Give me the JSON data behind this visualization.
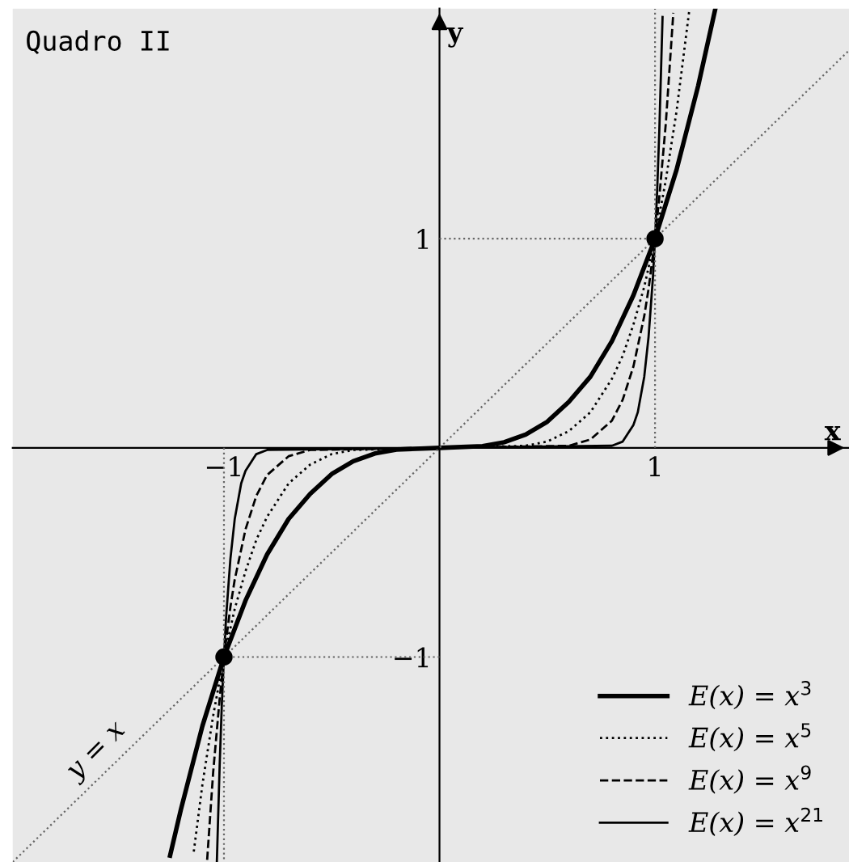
{
  "chart_data": {
    "type": "line",
    "title": "Quadro II",
    "xlabel": "x",
    "ylabel": "y",
    "xlim": [
      -1.98,
      1.9
    ],
    "ylim": [
      -1.98,
      2.1
    ],
    "xticks": [
      {
        "value": -1,
        "label": "−1"
      },
      {
        "value": 1,
        "label": "1"
      }
    ],
    "yticks": [
      {
        "value": -1,
        "label": "−1"
      },
      {
        "value": 1,
        "label": "1"
      }
    ],
    "grid": false,
    "legend": "bottom right",
    "annotations": [
      "y = x"
    ],
    "series": [
      {
        "name": "E(x) = x$^{3}$",
        "color": "#000000",
        "line_style": "solid",
        "x": [
          -1.25,
          -1.2,
          -1.1,
          -1,
          -0.9,
          -0.8,
          -0.7,
          -0.6,
          -0.5,
          -0.4,
          -0.3,
          -0.2,
          0,
          0.2,
          0.3,
          0.4,
          0.5,
          0.6,
          0.7,
          0.8,
          0.9,
          1,
          1.1,
          1.2,
          1.28
        ],
        "values": [
          -1.95,
          -1.73,
          -1.33,
          -1,
          -0.73,
          -0.51,
          -0.34,
          -0.22,
          -0.125,
          -0.064,
          -0.027,
          -0.008,
          0,
          0.008,
          0.027,
          0.064,
          0.125,
          0.22,
          0.34,
          0.51,
          0.73,
          1,
          1.33,
          1.73,
          2.1
        ]
      },
      {
        "name": "E(x) = x$^{5}$",
        "color": "#000000",
        "line_style": "dotted",
        "x": [
          -1.14,
          -1.1,
          -1.05,
          -1,
          -0.95,
          -0.9,
          -0.85,
          -0.8,
          -0.7,
          -0.6,
          -0.5,
          -0.4,
          0,
          0.4,
          0.5,
          0.6,
          0.7,
          0.8,
          0.85,
          0.9,
          0.95,
          1,
          1.05,
          1.1,
          1.16
        ],
        "values": [
          -1.93,
          -1.61,
          -1.28,
          -1,
          -0.77,
          -0.59,
          -0.44,
          -0.33,
          -0.17,
          -0.08,
          -0.03,
          -0.01,
          0,
          0.01,
          0.03,
          0.08,
          0.17,
          0.33,
          0.44,
          0.59,
          0.77,
          1,
          1.28,
          1.61,
          2.1
        ]
      },
      {
        "name": "E(x) = x$^{9}$",
        "color": "#000000",
        "line_style": "dashed",
        "x": [
          -1.078,
          -1.05,
          -1.02,
          -1,
          -0.97,
          -0.95,
          -0.9,
          -0.85,
          -0.8,
          -0.7,
          -0.6,
          0,
          0.6,
          0.7,
          0.8,
          0.85,
          0.9,
          0.95,
          0.97,
          1,
          1.02,
          1.05,
          1.085
        ],
        "values": [
          -1.97,
          -1.55,
          -1.2,
          -1,
          -0.76,
          -0.63,
          -0.39,
          -0.23,
          -0.13,
          -0.04,
          -0.01,
          0,
          0.01,
          0.04,
          0.13,
          0.23,
          0.39,
          0.63,
          0.76,
          1,
          1.2,
          1.55,
          2.08
        ]
      },
      {
        "name": "E(x) = x$^{21}$",
        "color": "#000000",
        "line_style": "solid",
        "x": [
          -1.033,
          -1.02,
          -1.01,
          -1,
          -0.99,
          -0.97,
          -0.95,
          -0.92,
          -0.9,
          -0.85,
          -0.8,
          0,
          0.8,
          0.85,
          0.9,
          0.92,
          0.95,
          0.97,
          0.99,
          1,
          1.01,
          1.02,
          1.035
        ],
        "values": [
          -1.98,
          -1.52,
          -1.23,
          -1,
          -0.81,
          -0.53,
          -0.34,
          -0.17,
          -0.11,
          -0.03,
          -0.01,
          0,
          0.01,
          0.03,
          0.11,
          0.17,
          0.34,
          0.53,
          0.81,
          1,
          1.23,
          1.52,
          2.06
        ]
      },
      {
        "color": "#666666",
        "line_style": "dotted",
        "x": [
          -1.98,
          1.9
        ],
        "values": [
          -1.98,
          1.9
        ]
      },
      {
        "color": "#666666",
        "line_style": "dotted",
        "x": [
          0,
          1
        ],
        "values": [
          1,
          1
        ]
      },
      {
        "color": "#666666",
        "line_style": "dotted",
        "x": [
          1,
          1
        ],
        "values": [
          0,
          2.1
        ]
      },
      {
        "color": "#666666",
        "line_style": "dotted",
        "x": [
          0,
          -1
        ],
        "values": [
          -1,
          -1
        ]
      },
      {
        "color": "#666666",
        "line_style": "dotted",
        "x": [
          -1,
          -1
        ],
        "values": [
          0,
          -1.98
        ]
      },
      {
        "type": "scatter",
        "marker": "circle",
        "color": "#000000",
        "x": [
          -1,
          1
        ],
        "values": [
          -1,
          1
        ]
      }
    ]
  }
}
